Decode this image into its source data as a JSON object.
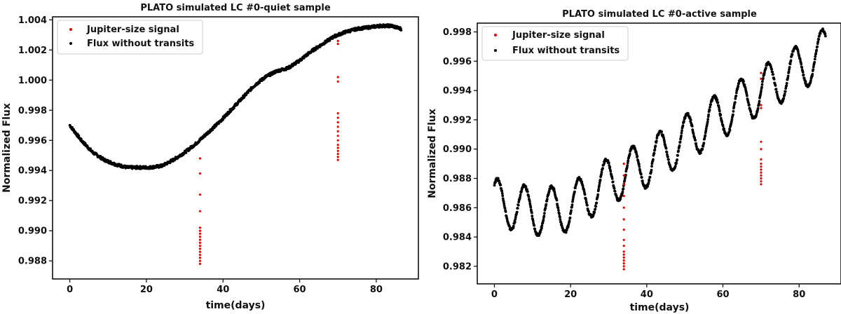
{
  "charts": [
    {
      "title": "PLATO simulated LC #0-quiet sample",
      "xlabel": "time(days)",
      "ylabel": "Normalized Flux",
      "legend": [
        {
          "label": "Jupiter-size signal",
          "color": "#e60000"
        },
        {
          "label": "Flux without transits",
          "color": "#000000"
        }
      ]
    },
    {
      "title": "PLATO simulated LC #0-active sample",
      "xlabel": "time(days)",
      "ylabel": "Normalized Flux",
      "legend": [
        {
          "label": "Jupiter-size signal",
          "color": "#e60000"
        },
        {
          "label": "Flux without transits",
          "color": "#000000"
        }
      ]
    }
  ],
  "chart_data": [
    {
      "type": "scatter",
      "title": "PLATO simulated LC #0-quiet sample",
      "xlabel": "time(days)",
      "ylabel": "Normalized Flux",
      "xlim": [
        -4.5,
        91
      ],
      "ylim": [
        0.9868,
        1.0042
      ],
      "xticks": [
        0,
        20,
        40,
        60,
        80
      ],
      "yticks": [
        0.988,
        0.99,
        0.992,
        0.994,
        0.996,
        0.998,
        1.0,
        1.002,
        1.004
      ],
      "ytick_labels": [
        "0.988",
        "0.990",
        "0.992",
        "0.994",
        "0.996",
        "0.998",
        "1.000",
        "1.002",
        "1.004"
      ],
      "legend_position": "top-left",
      "series": [
        {
          "name": "Flux without transits",
          "color": "#000000",
          "x": [
            0,
            3,
            6,
            9,
            12,
            15,
            18,
            21,
            24,
            27,
            30,
            33,
            36,
            39,
            42,
            45,
            48,
            51,
            54,
            57,
            60,
            63,
            66,
            69,
            72,
            75,
            78,
            81,
            84,
            86.5
          ],
          "y": [
            0.997,
            0.996,
            0.9952,
            0.9947,
            0.9944,
            0.9942,
            0.9942,
            0.9942,
            0.9943,
            0.9947,
            0.9952,
            0.9958,
            0.9965,
            0.9972,
            0.998,
            0.9988,
            0.9996,
            1.0002,
            1.0006,
            1.0008,
            1.0013,
            1.0019,
            1.0024,
            1.0029,
            1.0032,
            1.0034,
            1.0035,
            1.0036,
            1.0036,
            1.0034
          ]
        },
        {
          "name": "Jupiter-size signal",
          "color": "#e60000",
          "transits": [
            {
              "x": 34.0,
              "y": [
                0.9878,
                0.988,
                0.9882,
                0.9884,
                0.9886,
                0.9888,
                0.989,
                0.9892,
                0.9894,
                0.9896,
                0.9898,
                0.99,
                0.9902,
                0.9913,
                0.9924,
                0.9938,
                0.9948
              ]
            },
            {
              "x": 70.0,
              "y": [
                0.9947,
                0.9949,
                0.9951,
                0.9953,
                0.9955,
                0.9957,
                0.996,
                0.9963,
                0.9966,
                0.9969,
                0.9972,
                0.9975,
                0.9978,
                0.9999,
                1.0002,
                1.0024,
                1.0026
              ]
            }
          ]
        }
      ]
    },
    {
      "type": "scatter",
      "title": "PLATO simulated LC #0-active sample",
      "xlabel": "time(days)",
      "ylabel": "Normalized Flux",
      "xlim": [
        -4.5,
        91
      ],
      "ylim": [
        0.9808,
        0.9986
      ],
      "xticks": [
        0,
        20,
        40,
        60,
        80
      ],
      "yticks": [
        0.982,
        0.984,
        0.986,
        0.988,
        0.99,
        0.992,
        0.994,
        0.996,
        0.998
      ],
      "ytick_labels": [
        "0.982",
        "0.984",
        "0.986",
        "0.988",
        "0.990",
        "0.992",
        "0.994",
        "0.996",
        "0.998"
      ],
      "legend_position": "top-left",
      "series": [
        {
          "name": "Flux without transits",
          "color": "#000000",
          "model": {
            "trend_x": [
              0,
              11,
              20,
              30,
              40,
              50,
              60,
              70,
              80,
              87
            ],
            "trend_y": [
              0.9864,
              0.9857,
              0.986,
              0.9878,
              0.989,
              0.9907,
              0.9924,
              0.994,
              0.9955,
              0.9967
            ],
            "period_days": 7.1,
            "phase_offset_days": 0.8,
            "amplitude": 0.0016
          }
        },
        {
          "name": "Jupiter-size signal",
          "color": "#e60000",
          "transits": [
            {
              "x": 34.0,
              "y": [
                0.9818,
                0.982,
                0.9822,
                0.9824,
                0.9826,
                0.9828,
                0.983,
                0.9834,
                0.9838,
                0.9845,
                0.9852,
                0.986,
                0.9868,
                0.9876,
                0.9882,
                0.989
              ]
            },
            {
              "x": 70.0,
              "y": [
                0.9876,
                0.9878,
                0.988,
                0.9882,
                0.9884,
                0.9886,
                0.9888,
                0.989,
                0.9893,
                0.99,
                0.9905,
                0.9928,
                0.993,
                0.9948,
                0.9952
              ]
            }
          ]
        }
      ]
    }
  ]
}
